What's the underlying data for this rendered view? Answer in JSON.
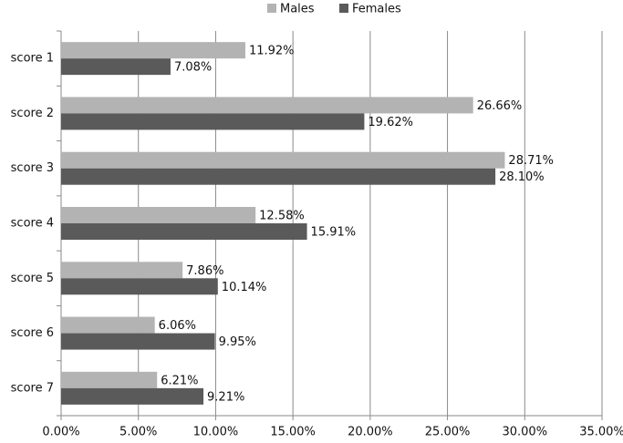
{
  "chart_data": {
    "type": "bar",
    "orientation": "horizontal",
    "categories": [
      "score 1",
      "score 2",
      "score 3",
      "score 4",
      "score 5",
      "score 6",
      "score 7"
    ],
    "series": [
      {
        "name": "Males",
        "color": "#b3b3b3",
        "values": [
          11.92,
          26.66,
          28.71,
          12.58,
          7.86,
          6.06,
          6.21
        ],
        "value_labels": [
          "11.92%",
          "26.66%",
          "28.71%",
          "12.58%",
          "7.86%",
          "6.06%",
          "6.21%"
        ]
      },
      {
        "name": "Females",
        "color": "#5a5a5a",
        "values": [
          7.08,
          19.62,
          28.1,
          15.91,
          10.14,
          9.95,
          9.21
        ],
        "value_labels": [
          "7.08%",
          "19.62%",
          "28.10%",
          "15.91%",
          "10.14%",
          "9.95%",
          "9.21%"
        ]
      }
    ],
    "xlim": [
      0,
      35
    ],
    "xticks": [
      {
        "value": 0,
        "label": "0.00%"
      },
      {
        "value": 5,
        "label": "5.00%"
      },
      {
        "value": 10,
        "label": "10.00%"
      },
      {
        "value": 15,
        "label": "15.00%"
      },
      {
        "value": 20,
        "label": "20.00%"
      },
      {
        "value": 25,
        "label": "25.00%"
      },
      {
        "value": 30,
        "label": "30.00%"
      },
      {
        "value": 35,
        "label": "35.00%"
      }
    ],
    "grid": true,
    "legend": "top"
  }
}
